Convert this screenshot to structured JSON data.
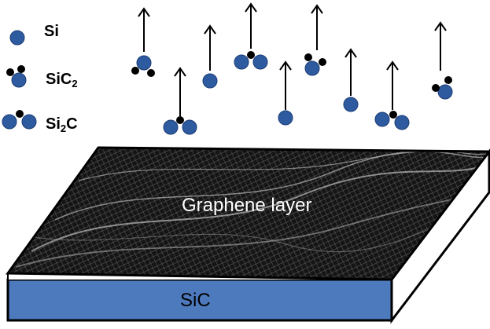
{
  "legend": {
    "si": {
      "base": "Si",
      "sub": "",
      "tail": ""
    },
    "sic2": {
      "base": "SiC",
      "sub": "2",
      "tail": ""
    },
    "si2c": {
      "base": "Si",
      "sub": "2",
      "tail": "C"
    }
  },
  "labels": {
    "graphene": "Graphene layer",
    "substrate": "SiC"
  },
  "colors": {
    "si_atom": "#2e5aa0",
    "carbon_atom": "#000000",
    "substrate_front": "#4d79bd",
    "graphene_base": "#151515",
    "label_white": "#ffffff",
    "label_black": "#000000"
  },
  "icons": {
    "arrow": "up-arrow-icon"
  }
}
